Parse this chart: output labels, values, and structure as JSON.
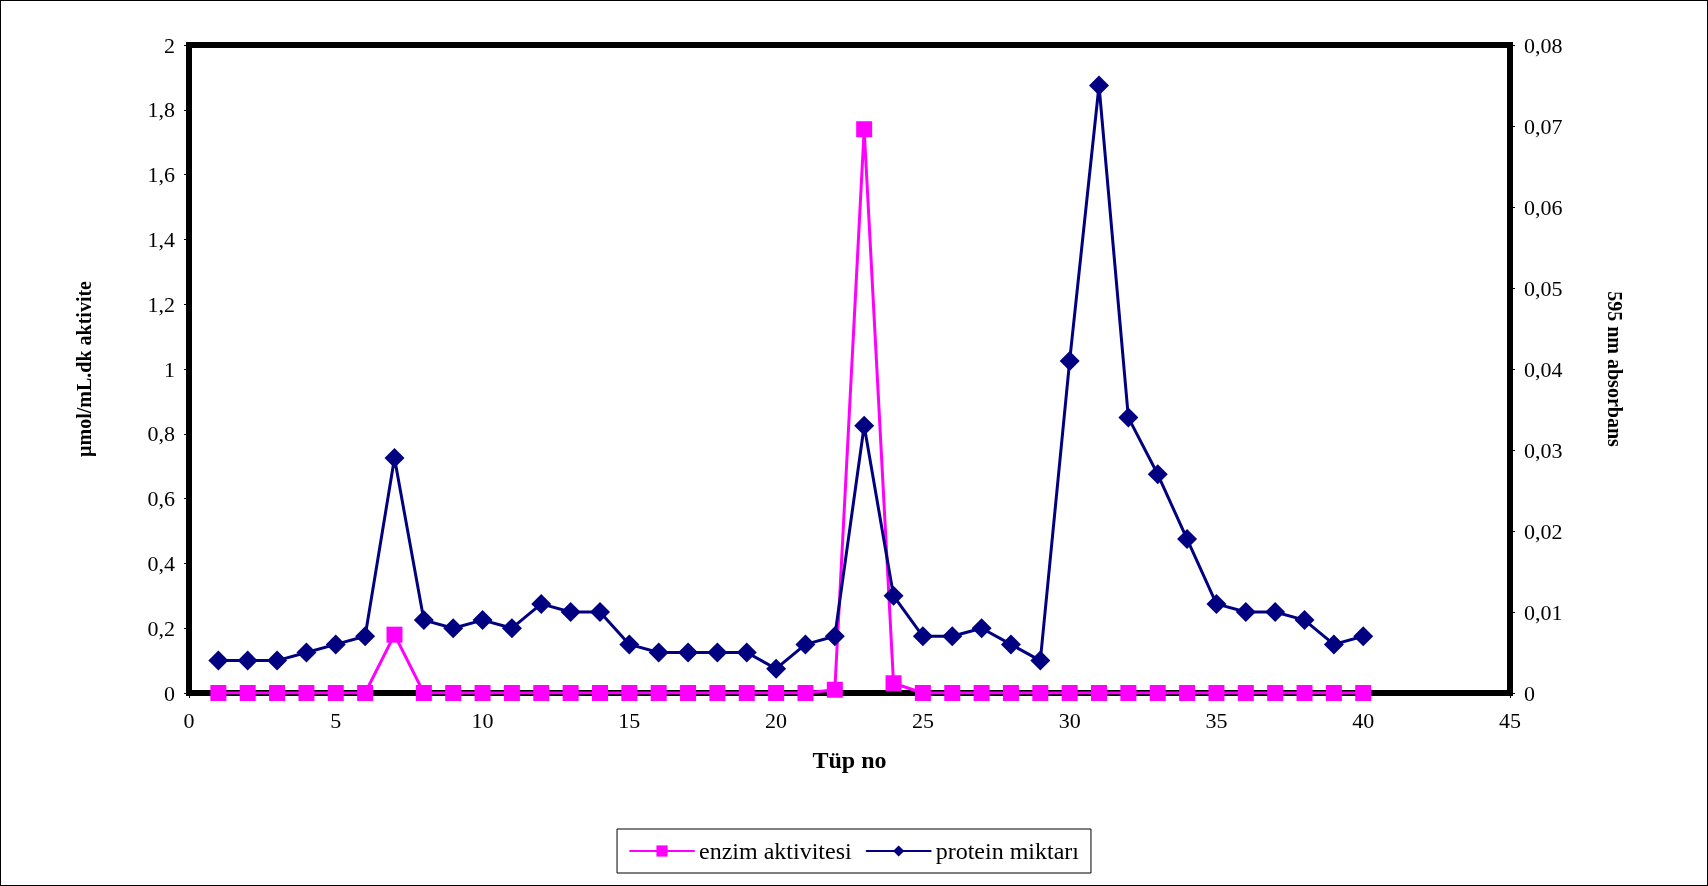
{
  "chart_data": {
    "type": "line",
    "xlabel": "Tüp no",
    "ylabel": "µmol/mL.dk aktivite",
    "y2label": "595 nm absorbans",
    "x": [
      1,
      2,
      3,
      4,
      5,
      6,
      7,
      8,
      9,
      10,
      11,
      12,
      13,
      14,
      15,
      16,
      17,
      18,
      19,
      20,
      21,
      22,
      23,
      24,
      25,
      26,
      27,
      28,
      29,
      30,
      31,
      32,
      33,
      34,
      35,
      36,
      37,
      38,
      39,
      40
    ],
    "series": [
      {
        "name": "enzim aktivitesi",
        "color": "#ff00ff",
        "marker": "square",
        "values": [
          0,
          0,
          0,
          0,
          0,
          0,
          0.18,
          0,
          0,
          0,
          0,
          0,
          0,
          0,
          0,
          0,
          0,
          0,
          0,
          0,
          0,
          0.01,
          1.74,
          0.03,
          0,
          0,
          0,
          0,
          0,
          0,
          0,
          0,
          0,
          0,
          0,
          0,
          0,
          0,
          0,
          0
        ]
      },
      {
        "name": "protein miktarı",
        "color": "#000080",
        "marker": "diamond",
        "axis": "y2",
        "values": [
          0.004,
          0.004,
          0.004,
          0.005,
          0.006,
          0.007,
          0.029,
          0.009,
          0.008,
          0.009,
          0.008,
          0.011,
          0.01,
          0.01,
          0.006,
          0.005,
          0.005,
          0.005,
          0.005,
          0.003,
          0.006,
          0.007,
          0.033,
          0.012,
          0.007,
          0.007,
          0.008,
          0.006,
          0.004,
          0.041,
          0.075,
          0.034,
          0.027,
          0.019,
          0.011,
          0.01,
          0.01,
          0.009,
          0.006,
          0.007
        ]
      }
    ],
    "xlim": [
      0,
      45
    ],
    "xticks": [
      0,
      5,
      10,
      15,
      20,
      25,
      30,
      35,
      40,
      45
    ],
    "ylim": [
      0,
      2
    ],
    "yticks": [
      0,
      {
        "value": 0.2,
        "label": "0,2"
      },
      {
        "value": 0.4,
        "label": "0,4"
      },
      {
        "value": 0.6,
        "label": "0,6"
      },
      {
        "value": 0.8,
        "label": "0,8"
      },
      1,
      {
        "value": 1.2,
        "label": "1,2"
      },
      {
        "value": 1.4,
        "label": "1,4"
      },
      {
        "value": 1.6,
        "label": "1,6"
      },
      {
        "value": 1.8,
        "label": "1,8"
      },
      2
    ],
    "y2lim": [
      0,
      0.08
    ],
    "y2ticks": [
      0,
      {
        "value": 0.01,
        "label": "0,01"
      },
      {
        "value": 0.02,
        "label": "0,02"
      },
      {
        "value": 0.03,
        "label": "0,03"
      },
      {
        "value": 0.04,
        "label": "0,04"
      },
      {
        "value": 0.05,
        "label": "0,05"
      },
      {
        "value": 0.06,
        "label": "0,06"
      },
      {
        "value": 0.07,
        "label": "0,07"
      },
      {
        "value": 0.08,
        "label": "0,08"
      }
    ],
    "grid": false,
    "legend": "bottom",
    "line_style": "solid"
  }
}
